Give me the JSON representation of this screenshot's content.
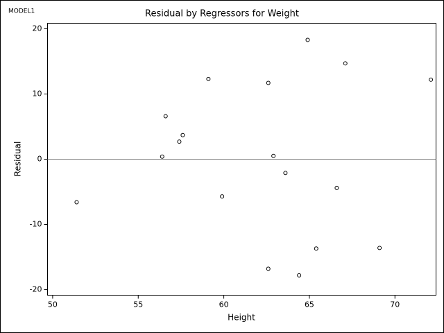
{
  "chart_data": {
    "type": "scatter",
    "model_label": "MODEL1",
    "title": "Residual by Regressors for Weight",
    "x_label": "Height",
    "y_label": "Residual",
    "x": [
      51.4,
      56.4,
      56.6,
      57.4,
      57.6,
      59.1,
      59.9,
      62.6,
      62.6,
      62.9,
      63.6,
      64.4,
      64.9,
      65.4,
      66.6,
      67.1,
      69.1,
      72.1
    ],
    "values": [
      -6.6,
      0.4,
      6.6,
      2.7,
      3.7,
      12.3,
      -5.7,
      11.7,
      -16.8,
      0.5,
      -2.1,
      -17.8,
      18.3,
      -13.7,
      -4.4,
      14.7,
      -13.6,
      12.2
    ],
    "color": "#000000",
    "refline": 0,
    "refline_color": "#808080",
    "xlim": [
      49.7,
      72.4
    ],
    "ylim": [
      -20.85,
      20.85
    ],
    "xticks": [
      50,
      55,
      60,
      65,
      70
    ],
    "yticks": [
      -20,
      -10,
      0,
      10,
      20
    ]
  }
}
